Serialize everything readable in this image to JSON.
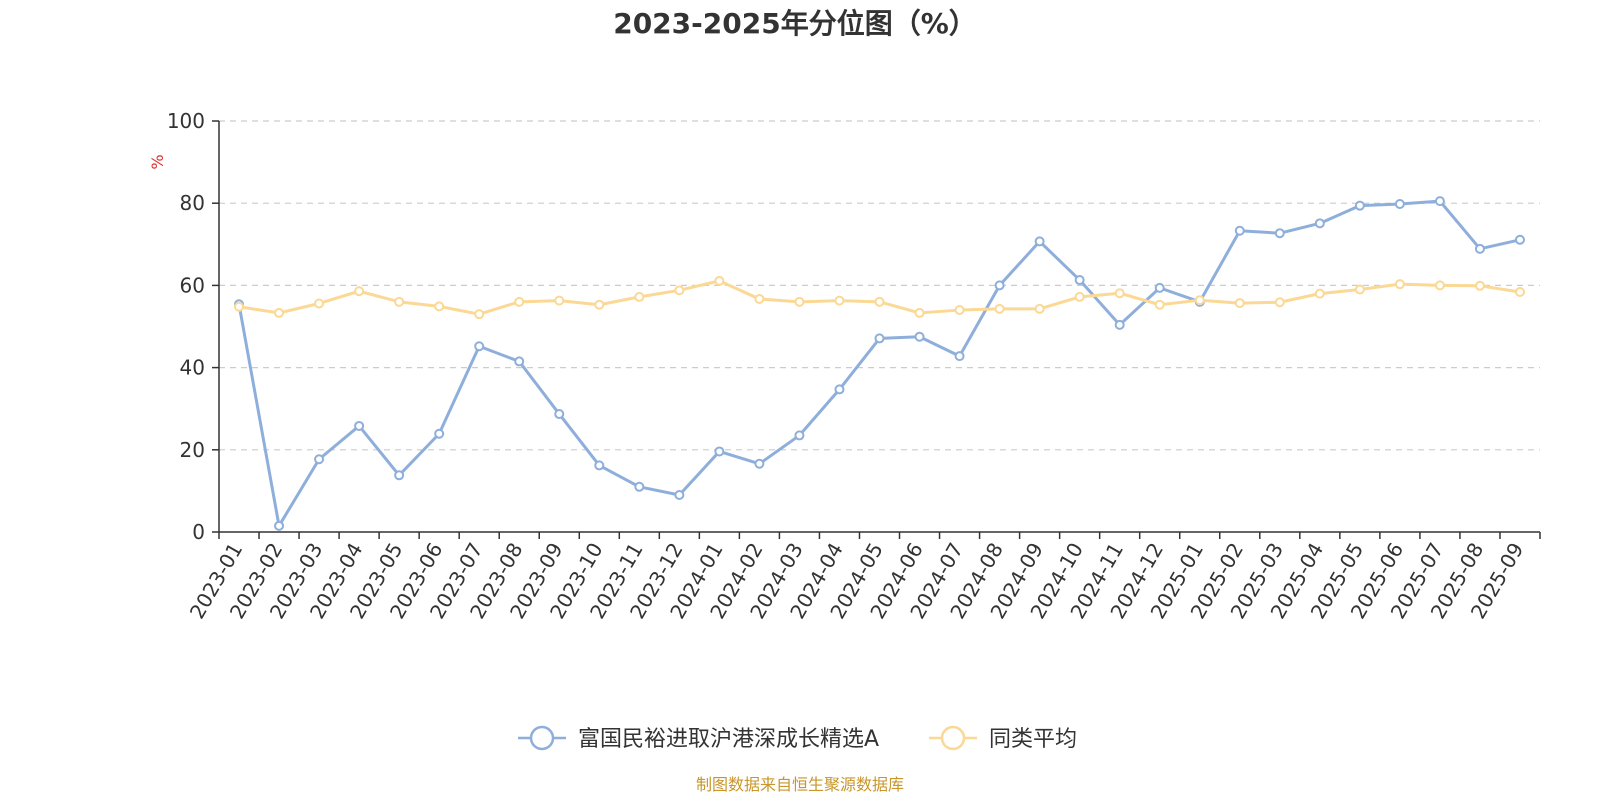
{
  "chart_data": {
    "type": "line",
    "title": "2023-2025年分位图（%）",
    "ylabel": "%",
    "ylim": [
      0,
      100
    ],
    "yticks": [
      0,
      20,
      40,
      60,
      80,
      100
    ],
    "grid": true,
    "legend_position": "bottom-center",
    "categories": [
      "2023-01",
      "2023-02",
      "2023-03",
      "2023-04",
      "2023-05",
      "2023-06",
      "2023-07",
      "2023-08",
      "2023-09",
      "2023-10",
      "2023-11",
      "2023-12",
      "2024-01",
      "2024-02",
      "2024-03",
      "2024-04",
      "2024-05",
      "2024-06",
      "2024-07",
      "2024-08",
      "2024-09",
      "2024-10",
      "2024-11",
      "2024-12",
      "2025-01",
      "2025-02",
      "2025-03",
      "2025-04",
      "2025-05",
      "2025-06",
      "2025-07",
      "2025-08",
      "2025-09"
    ],
    "series": [
      {
        "name": "富国民裕进取沪港深成长精选A",
        "color": "#8eaedb",
        "values": [
          55.4,
          1.5,
          17.7,
          25.8,
          13.8,
          23.9,
          45.2,
          41.5,
          28.7,
          16.2,
          11.0,
          9.0,
          19.6,
          16.6,
          23.5,
          34.7,
          47.1,
          47.5,
          42.8,
          60.0,
          70.7,
          61.3,
          50.4,
          59.4,
          56.0,
          73.3,
          72.7,
          75.1,
          79.4,
          79.8,
          80.5,
          68.9,
          71.1
        ]
      },
      {
        "name": "同类平均",
        "color": "#fbd894",
        "values": [
          54.8,
          53.3,
          55.6,
          58.6,
          56.0,
          54.9,
          53.0,
          56.0,
          56.3,
          55.3,
          57.2,
          58.8,
          61.1,
          56.7,
          56.0,
          56.3,
          56.0,
          53.3,
          54.0,
          54.3,
          54.3,
          57.2,
          58.1,
          55.3,
          56.4,
          55.7,
          55.9,
          58.0,
          59.0,
          60.3,
          60.0,
          59.9,
          58.4
        ]
      }
    ]
  },
  "footer": {
    "source": "制图数据来自恒生聚源数据库"
  }
}
